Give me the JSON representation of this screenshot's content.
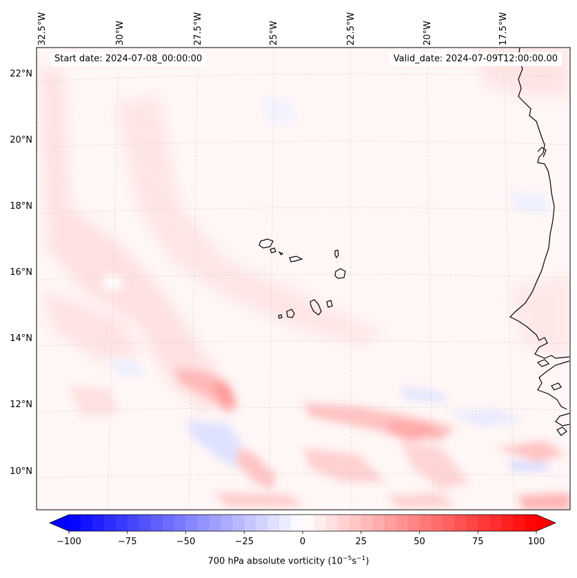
{
  "start_date": "Start date: 2024-07-08_00:00:00",
  "valid_date": "Valid_date: 2024-07-09T12:00:00.00",
  "lon_labels": [
    "32.5°W",
    "30°W",
    "27.5°W",
    "25°W",
    "22.5°W",
    "20°W",
    "17.5°W"
  ],
  "lat_labels": [
    "22°N",
    "20°N",
    "18°N",
    "16°N",
    "14°N",
    "12°N",
    "10°N"
  ],
  "colorbar": {
    "ticks": [
      "−100",
      "−75",
      "−50",
      "−25",
      "0",
      "25",
      "50",
      "75",
      "100"
    ],
    "tick_values": [
      -100,
      -75,
      -50,
      -25,
      0,
      25,
      50,
      75,
      100
    ],
    "min": -100,
    "max": 100,
    "steps": 40,
    "label_prefix": "700 hPa absolute vorticity (10",
    "label_exp1": "−5",
    "label_mid": "s",
    "label_exp2": "−1",
    "label_suffix": ")",
    "colors": {
      "neg": "#0000ff",
      "mid": "#ffffff",
      "pos": "#ff0000"
    }
  }
}
